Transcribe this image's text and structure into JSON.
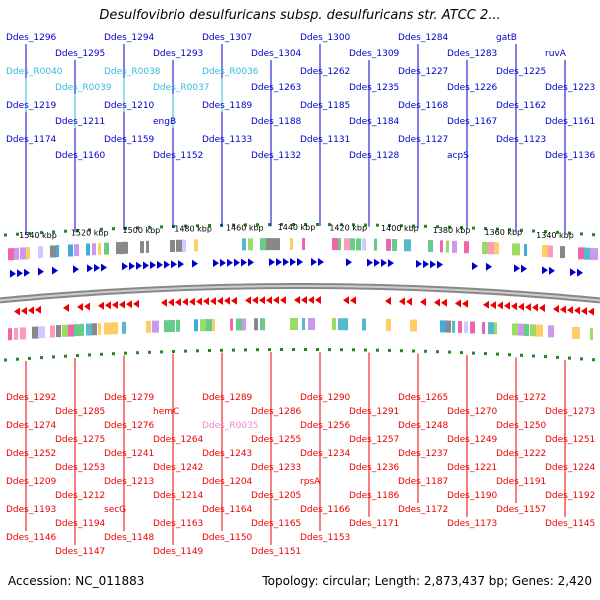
{
  "title": "Desulfovibrio desulfuricans subsp. desulfuricans str. ATCC 2...",
  "footer": {
    "accession": "Accession: NC_011883",
    "summary": "Topology: circular; Length: 2,873,437 bp; Genes: 2,420"
  },
  "colors": {
    "forward": "#0000cc",
    "reverse": "#ee0000",
    "rna": "#33bbdd",
    "pseudo_rna": "#ee88cc",
    "backbone": "#888888",
    "ticks": "#228822"
  },
  "scale_labels": [
    "1540 kbp",
    "1520 kbp",
    "1500 kbp",
    "1480 kbp",
    "1460 kbp",
    "1440 kbp",
    "1420 kbp",
    "1400 kbp",
    "1380 kbp",
    "1360 kbp",
    "1340 kbp"
  ],
  "top_labels": [
    {
      "text": "Ddes_1296",
      "type": "forward"
    },
    {
      "text": "Ddes_1295",
      "type": "forward"
    },
    {
      "text": "Ddes_1294",
      "type": "forward"
    },
    {
      "text": "Ddes_1293",
      "type": "forward"
    },
    {
      "text": "Ddes_1307",
      "type": "forward"
    },
    {
      "text": "Ddes_1304",
      "type": "forward"
    },
    {
      "text": "Ddes_1300",
      "type": "forward"
    },
    {
      "text": "Ddes_1309",
      "type": "forward"
    },
    {
      "text": "Ddes_1284",
      "type": "forward"
    },
    {
      "text": "Ddes_1283",
      "type": "forward"
    },
    {
      "text": "gatB",
      "type": "forward"
    },
    {
      "text": "ruvA",
      "type": "forward"
    },
    {
      "text": "Ddes_R0040",
      "type": "rna"
    },
    {
      "text": "Ddes_R0039",
      "type": "rna"
    },
    {
      "text": "Ddes_R0038",
      "type": "rna"
    },
    {
      "text": "Ddes_R0037",
      "type": "rna"
    },
    {
      "text": "Ddes_R0036",
      "type": "rna"
    },
    {
      "text": "Ddes_1263",
      "type": "forward"
    },
    {
      "text": "Ddes_1262",
      "type": "forward"
    },
    {
      "text": "Ddes_1235",
      "type": "forward"
    },
    {
      "text": "Ddes_1227",
      "type": "forward"
    },
    {
      "text": "Ddes_1226",
      "type": "forward"
    },
    {
      "text": "Ddes_1225",
      "type": "forward"
    },
    {
      "text": "Ddes_1223",
      "type": "forward"
    },
    {
      "text": "Ddes_1219",
      "type": "forward"
    },
    {
      "text": "Ddes_1211",
      "type": "forward"
    },
    {
      "text": "Ddes_1210",
      "type": "forward"
    },
    {
      "text": "engB",
      "type": "forward"
    },
    {
      "text": "Ddes_1189",
      "type": "forward"
    },
    {
      "text": "Ddes_1188",
      "type": "forward"
    },
    {
      "text": "Ddes_1185",
      "type": "forward"
    },
    {
      "text": "Ddes_1184",
      "type": "forward"
    },
    {
      "text": "Ddes_1168",
      "type": "forward"
    },
    {
      "text": "Ddes_1167",
      "type": "forward"
    },
    {
      "text": "Ddes_1162",
      "type": "forward"
    },
    {
      "text": "Ddes_1161",
      "type": "forward"
    },
    {
      "text": "Ddes_1174",
      "type": "forward"
    },
    {
      "text": "Ddes_1160",
      "type": "forward"
    },
    {
      "text": "Ddes_1159",
      "type": "forward"
    },
    {
      "text": "Ddes_1152",
      "type": "forward"
    },
    {
      "text": "Ddes_1133",
      "type": "forward"
    },
    {
      "text": "Ddes_1132",
      "type": "forward"
    },
    {
      "text": "Ddes_1131",
      "type": "forward"
    },
    {
      "text": "Ddes_1128",
      "type": "forward"
    },
    {
      "text": "Ddes_1127",
      "type": "forward"
    },
    {
      "text": "acpS",
      "type": "forward"
    },
    {
      "text": "Ddes_1123",
      "type": "forward"
    },
    {
      "text": "Ddes_1136",
      "type": "forward"
    }
  ],
  "bottom_labels": [
    {
      "text": "Ddes_1292",
      "type": "reverse"
    },
    {
      "text": "Ddes_1285",
      "type": "reverse"
    },
    {
      "text": "Ddes_1279",
      "type": "reverse"
    },
    {
      "text": "hemC",
      "type": "reverse"
    },
    {
      "text": "Ddes_1289",
      "type": "reverse"
    },
    {
      "text": "Ddes_1286",
      "type": "reverse"
    },
    {
      "text": "Ddes_1290",
      "type": "reverse"
    },
    {
      "text": "Ddes_1291",
      "type": "reverse"
    },
    {
      "text": "Ddes_1265",
      "type": "reverse"
    },
    {
      "text": "Ddes_1270",
      "type": "reverse"
    },
    {
      "text": "Ddes_1272",
      "type": "reverse"
    },
    {
      "text": "Ddes_1273",
      "type": "reverse"
    },
    {
      "text": "Ddes_1274",
      "type": "reverse"
    },
    {
      "text": "Ddes_1275",
      "type": "reverse"
    },
    {
      "text": "Ddes_1276",
      "type": "reverse"
    },
    {
      "text": "Ddes_1264",
      "type": "reverse"
    },
    {
      "text": "Ddes_R0035",
      "type": "pseudo_rna"
    },
    {
      "text": "Ddes_1255",
      "type": "reverse"
    },
    {
      "text": "Ddes_1256",
      "type": "reverse"
    },
    {
      "text": "Ddes_1257",
      "type": "reverse"
    },
    {
      "text": "Ddes_1248",
      "type": "reverse"
    },
    {
      "text": "Ddes_1249",
      "type": "reverse"
    },
    {
      "text": "Ddes_1250",
      "type": "reverse"
    },
    {
      "text": "Ddes_1251",
      "type": "reverse"
    },
    {
      "text": "Ddes_1252",
      "type": "reverse"
    },
    {
      "text": "Ddes_1253",
      "type": "reverse"
    },
    {
      "text": "Ddes_1241",
      "type": "reverse"
    },
    {
      "text": "Ddes_1242",
      "type": "reverse"
    },
    {
      "text": "Ddes_1243",
      "type": "reverse"
    },
    {
      "text": "Ddes_1233",
      "type": "reverse"
    },
    {
      "text": "Ddes_1234",
      "type": "reverse"
    },
    {
      "text": "Ddes_1236",
      "type": "reverse"
    },
    {
      "text": "Ddes_1237",
      "type": "reverse"
    },
    {
      "text": "Ddes_1221",
      "type": "reverse"
    },
    {
      "text": "Ddes_1222",
      "type": "reverse"
    },
    {
      "text": "Ddes_1224",
      "type": "reverse"
    },
    {
      "text": "Ddes_1209",
      "type": "reverse"
    },
    {
      "text": "Ddes_1212",
      "type": "reverse"
    },
    {
      "text": "Ddes_1213",
      "type": "reverse"
    },
    {
      "text": "Ddes_1214",
      "type": "reverse"
    },
    {
      "text": "Ddes_1204",
      "type": "reverse"
    },
    {
      "text": "Ddes_1205",
      "type": "reverse"
    },
    {
      "text": "rpsA",
      "type": "reverse"
    },
    {
      "text": "Ddes_1186",
      "type": "reverse"
    },
    {
      "text": "Ddes_1187",
      "type": "reverse"
    },
    {
      "text": "Ddes_1190",
      "type": "reverse"
    },
    {
      "text": "Ddes_1191",
      "type": "reverse"
    },
    {
      "text": "Ddes_1192",
      "type": "reverse"
    },
    {
      "text": "Ddes_1193",
      "type": "reverse"
    },
    {
      "text": "Ddes_1194",
      "type": "reverse"
    },
    {
      "text": "secG",
      "type": "reverse"
    },
    {
      "text": "Ddes_1163",
      "type": "reverse"
    },
    {
      "text": "Ddes_1164",
      "type": "reverse"
    },
    {
      "text": "Ddes_1165",
      "type": "reverse"
    },
    {
      "text": "Ddes_1166",
      "type": "reverse"
    },
    {
      "text": "Ddes_1171",
      "type": "reverse"
    },
    {
      "text": "Ddes_1172",
      "type": "reverse"
    },
    {
      "text": "Ddes_1173",
      "type": "reverse"
    },
    {
      "text": "Ddes_1157",
      "type": "reverse"
    },
    {
      "text": "Ddes_1145",
      "type": "reverse"
    },
    {
      "text": "Ddes_1146",
      "type": "reverse"
    },
    {
      "text": "Ddes_1147",
      "type": "reverse"
    },
    {
      "text": "Ddes_1148",
      "type": "reverse"
    },
    {
      "text": "Ddes_1149",
      "type": "reverse"
    },
    {
      "text": "Ddes_1150",
      "type": "reverse"
    },
    {
      "text": "Ddes_1151",
      "type": "reverse"
    },
    {
      "text": "Ddes_1153",
      "type": "reverse"
    }
  ]
}
